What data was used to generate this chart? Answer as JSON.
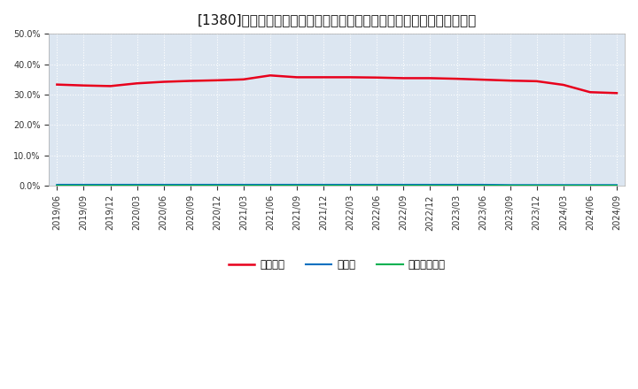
{
  "title": "[1380]　自己資本、のれん、繰延税金資産の総資産に対する比率の推移",
  "x_labels": [
    "2019/06",
    "2019/09",
    "2019/12",
    "2020/03",
    "2020/06",
    "2020/09",
    "2020/12",
    "2021/03",
    "2021/06",
    "2021/09",
    "2021/12",
    "2022/03",
    "2022/06",
    "2022/09",
    "2022/12",
    "2023/03",
    "2023/06",
    "2023/09",
    "2023/12",
    "2024/03",
    "2024/06",
    "2024/09"
  ],
  "jikoshihon": [
    0.333,
    0.33,
    0.328,
    0.337,
    0.342,
    0.345,
    0.347,
    0.35,
    0.363,
    0.357,
    0.357,
    0.357,
    0.356,
    0.354,
    0.354,
    0.352,
    0.349,
    0.346,
    0.344,
    0.332,
    0.308,
    0.305
  ],
  "noren": [
    0.004,
    0.004,
    0.004,
    0.004,
    0.004,
    0.004,
    0.004,
    0.004,
    0.004,
    0.004,
    0.004,
    0.004,
    0.004,
    0.004,
    0.004,
    0.004,
    0.004,
    0.003,
    0.003,
    0.003,
    0.003,
    0.003
  ],
  "kurinobe": [
    0.001,
    0.001,
    0.001,
    0.001,
    0.001,
    0.001,
    0.001,
    0.001,
    0.001,
    0.001,
    0.001,
    0.001,
    0.001,
    0.001,
    0.001,
    0.001,
    0.001,
    0.001,
    0.001,
    0.001,
    0.001,
    0.001
  ],
  "jikoshihon_color": "#e8001c",
  "noren_color": "#0070c0",
  "kurinobe_color": "#00b050",
  "background_color": "#ffffff",
  "plot_bg_color": "#dce6f1",
  "grid_color": "#ffffff",
  "ylim": [
    0.0,
    0.5
  ],
  "yticks": [
    0.0,
    0.1,
    0.2,
    0.3,
    0.4,
    0.5
  ],
  "legend_jikoshihon": "自己資本",
  "legend_noren": "のれん",
  "legend_kurinobe": "繰延税金資産",
  "title_fontsize": 11,
  "tick_fontsize": 7,
  "legend_fontsize": 8.5
}
